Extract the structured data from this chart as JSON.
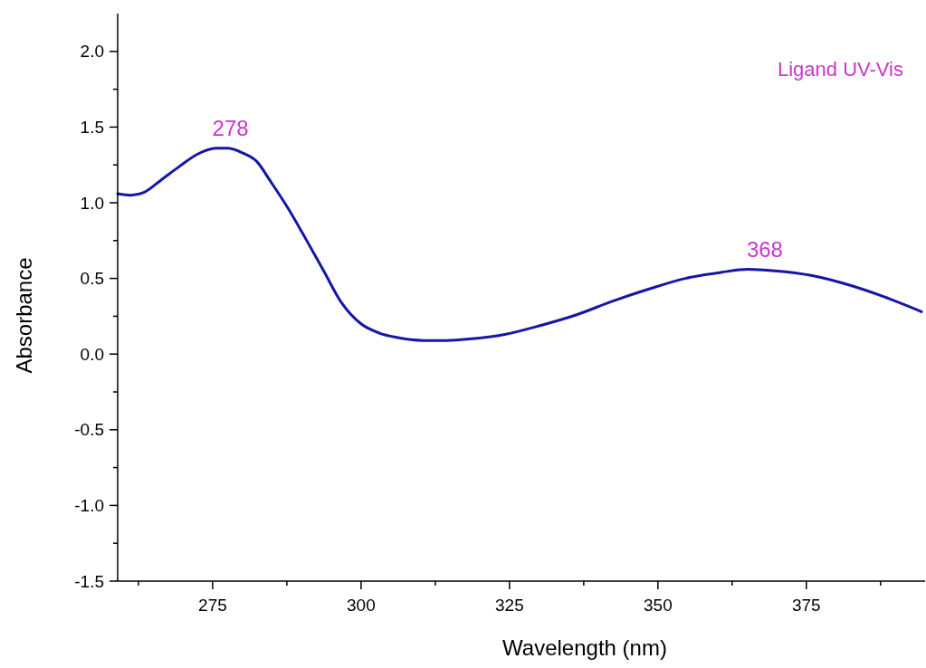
{
  "chart_data": {
    "type": "line",
    "xlabel": "Wavelength (nm)",
    "ylabel": "Absorbance",
    "xlim": [
      259,
      395
    ],
    "ylim": [
      -1.5,
      2.25
    ],
    "xticks": [
      {
        "value": 262.5,
        "label": null
      },
      275,
      {
        "value": 287.5,
        "label": null
      },
      300,
      {
        "value": 312.5,
        "label": null
      },
      325,
      {
        "value": 337.5,
        "label": null
      },
      350,
      {
        "value": 362.5,
        "label": null
      },
      375,
      {
        "value": 387.5,
        "label": null
      }
    ],
    "yticks": [
      {
        "value": -1.5,
        "label": "-1.5"
      },
      {
        "value": -1.25,
        "label": null
      },
      {
        "value": -1.0,
        "label": "-1.0"
      },
      {
        "value": -0.75,
        "label": null
      },
      {
        "value": -0.5,
        "label": "-0.5"
      },
      {
        "value": -0.25,
        "label": null
      },
      {
        "value": 0,
        "label": "0.0"
      },
      {
        "value": 0.25,
        "label": null
      },
      {
        "value": 0.5,
        "label": "0.5"
      },
      {
        "value": 0.75,
        "label": null
      },
      {
        "value": 1.0,
        "label": "1.0"
      },
      {
        "value": 1.25,
        "label": null
      },
      {
        "value": 1.5,
        "label": "1.5"
      },
      {
        "value": 1.75,
        "label": null
      },
      {
        "value": 2.0,
        "label": "2.0"
      }
    ],
    "x": [
      259,
      261.2,
      263.5,
      266.3,
      269.4,
      272.4,
      275.5,
      277.7,
      280,
      282.5,
      284.6,
      287.6,
      290.7,
      293.7,
      296.7,
      300,
      303,
      306,
      310.6,
      313.6,
      318.2,
      324.2,
      330.3,
      336.3,
      342.4,
      348.5,
      354.6,
      360.6,
      365.2,
      369.7,
      375.8,
      381.9,
      388,
      394.4
    ],
    "series": [
      {
        "color": "#1515a8",
        "values": [
          1.06,
          1.05,
          1.07,
          1.15,
          1.24,
          1.32,
          1.36,
          1.36,
          1.33,
          1.27,
          1.15,
          0.97,
          0.76,
          0.55,
          0.34,
          0.2,
          0.14,
          0.11,
          0.09,
          0.09,
          0.1,
          0.13,
          0.19,
          0.26,
          0.35,
          0.43,
          0.5,
          0.54,
          0.56,
          0.55,
          0.52,
          0.46,
          0.38,
          0.28
        ]
      }
    ],
    "annotations": [
      {
        "text": "278",
        "x": 278,
        "y": 1.36
      },
      {
        "text": "368",
        "x": 368,
        "y": 0.56
      },
      "Ligand UV-Vis"
    ],
    "grid": false,
    "marker": "none",
    "line_style": "solid"
  }
}
